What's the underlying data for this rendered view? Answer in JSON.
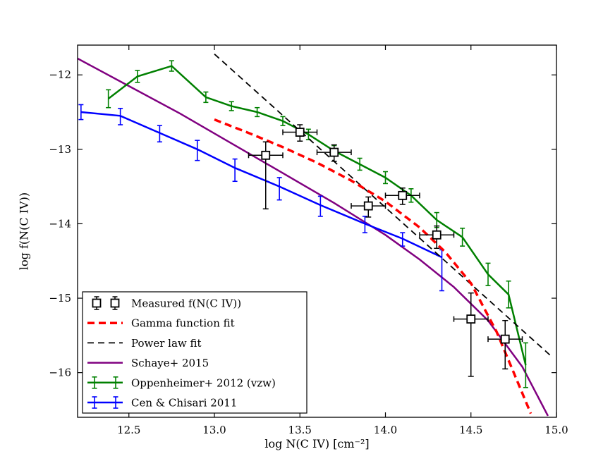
{
  "figure": {
    "background": "#ffffff",
    "frame_color": "#000000"
  },
  "chart_data": {
    "type": "line",
    "title": "",
    "xlabel": "log N(C IV) [cm⁻²]",
    "ylabel": "log f(N(C IV))",
    "xlim": [
      12.2,
      15.0
    ],
    "ylim": [
      -16.6,
      -11.6
    ],
    "grid": false,
    "legend_position": "lower left",
    "xticks": [
      12.5,
      13.0,
      13.5,
      14.0,
      14.5,
      15.0
    ],
    "xtick_labels": [
      "12.5",
      "13.0",
      "13.5",
      "14.0",
      "14.5",
      "15.0"
    ],
    "yticks": [
      -12,
      -13,
      -14,
      -15,
      -16
    ],
    "ytick_labels": [
      "−12",
      "−13",
      "−14",
      "−15",
      "−16"
    ],
    "series": [
      {
        "name": "Measured f(N(C IV))",
        "plot": "errorbar-scatter",
        "marker": "square",
        "color": "#000000",
        "zorder": 7,
        "x": [
          13.3,
          13.5,
          13.7,
          13.9,
          14.1,
          14.3,
          14.5,
          14.7
        ],
        "y": [
          -13.08,
          -12.77,
          -13.04,
          -13.76,
          -13.62,
          -14.15,
          -15.28,
          -15.55
        ],
        "xerr": [
          0.1,
          0.1,
          0.1,
          0.1,
          0.1,
          0.1,
          0.1,
          0.1
        ],
        "yerr_up": [
          0.18,
          0.1,
          0.1,
          0.12,
          0.1,
          0.12,
          0.35,
          0.25
        ],
        "yerr_down": [
          0.72,
          0.12,
          0.12,
          0.15,
          0.12,
          0.18,
          0.77,
          0.4
        ]
      },
      {
        "name": "Gamma function fit",
        "plot": "line",
        "style": "dashed",
        "color": "#ff0000",
        "width": 3.5,
        "zorder": 6,
        "x": [
          13.0,
          13.2,
          13.4,
          13.6,
          13.8,
          14.0,
          14.2,
          14.35,
          14.5,
          14.65,
          14.75,
          14.85
        ],
        "y": [
          -12.6,
          -12.78,
          -12.97,
          -13.18,
          -13.42,
          -13.7,
          -14.05,
          -14.38,
          -14.8,
          -15.45,
          -16.0,
          -16.55
        ]
      },
      {
        "name": "Power law fit",
        "plot": "line",
        "style": "dashed",
        "color": "#000000",
        "width": 1.8,
        "zorder": 5,
        "x": [
          13.0,
          14.97
        ],
        "y": [
          -11.72,
          -15.78
        ]
      },
      {
        "name": "Schaye+ 2015",
        "plot": "line",
        "style": "solid",
        "color": "#800080",
        "width": 2.5,
        "zorder": 2,
        "x": [
          12.2,
          12.5,
          12.8,
          13.1,
          13.4,
          13.7,
          14.0,
          14.2,
          14.4,
          14.6,
          14.8,
          14.95
        ],
        "y": [
          -11.78,
          -12.15,
          -12.52,
          -12.92,
          -13.32,
          -13.72,
          -14.15,
          -14.48,
          -14.85,
          -15.3,
          -15.92,
          -16.58
        ]
      },
      {
        "name": "Oppenheimer+ 2012 (vzw)",
        "plot": "errorbar-line",
        "style": "solid",
        "color": "#008000",
        "width": 2.5,
        "zorder": 4,
        "x": [
          12.38,
          12.55,
          12.75,
          12.95,
          13.1,
          13.25,
          13.4,
          13.55,
          13.7,
          13.85,
          14.0,
          14.15,
          14.3,
          14.45,
          14.6,
          14.72,
          14.82
        ],
        "y": [
          -12.32,
          -12.02,
          -11.88,
          -12.3,
          -12.42,
          -12.5,
          -12.62,
          -12.8,
          -13.02,
          -13.2,
          -13.38,
          -13.62,
          -13.95,
          -14.18,
          -14.68,
          -14.95,
          -15.9
        ],
        "yerr": [
          0.12,
          0.08,
          0.07,
          0.07,
          0.06,
          0.06,
          0.06,
          0.07,
          0.07,
          0.08,
          0.08,
          0.09,
          0.1,
          0.12,
          0.15,
          0.18,
          0.3
        ]
      },
      {
        "name": "Cen & Chisari 2011",
        "plot": "errorbar-line",
        "style": "solid",
        "color": "#0000ff",
        "width": 2.5,
        "zorder": 3,
        "x": [
          12.22,
          12.45,
          12.68,
          12.9,
          13.12,
          13.38,
          13.62,
          13.88,
          14.1,
          14.33
        ],
        "y": [
          -12.5,
          -12.55,
          -12.78,
          -13.0,
          -13.25,
          -13.5,
          -13.75,
          -14.0,
          -14.2,
          -14.45
        ],
        "yerr_up": [
          0.1,
          0.1,
          0.1,
          0.12,
          0.12,
          0.12,
          0.12,
          0.1,
          0.08,
          0.1
        ],
        "yerr_down": [
          0.1,
          0.12,
          0.12,
          0.15,
          0.18,
          0.18,
          0.15,
          0.12,
          0.1,
          0.45
        ]
      }
    ]
  }
}
